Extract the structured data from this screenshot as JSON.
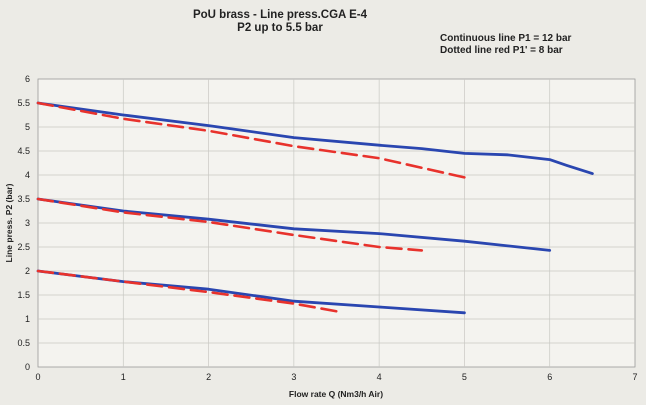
{
  "chart_data": {
    "type": "line",
    "title": "PoU brass  - Line press.CGA E-4",
    "subtitle": "P2 up to 5.5 bar",
    "annotations": [
      "Continuous line P1 = 12 bar",
      "Dotted line red  P1' = 8 bar"
    ],
    "xlabel": "Flow rate Q (Nm3/h Air)",
    "ylabel": "Line press. P2 (bar)",
    "xlim": [
      0,
      7
    ],
    "ylim": [
      0,
      6
    ],
    "x_ticks": [
      "0",
      "1",
      "2",
      "3",
      "4",
      "5",
      "6",
      "7"
    ],
    "y_ticks": [
      "0",
      "0.5",
      "1",
      "1.5",
      "2",
      "2.5",
      "3",
      "3.5",
      "4",
      "4.5",
      "5",
      "5.5",
      "6"
    ],
    "grid": true,
    "series": [
      {
        "style": "solid",
        "color": "#2a46b0",
        "points": [
          [
            0,
            5.5
          ],
          [
            1,
            5.25
          ],
          [
            2,
            5.03
          ],
          [
            3,
            4.78
          ],
          [
            4,
            4.62
          ],
          [
            4.5,
            4.55
          ],
          [
            5,
            4.45
          ],
          [
            5.5,
            4.42
          ],
          [
            6,
            4.32
          ],
          [
            6.2,
            4.2
          ],
          [
            6.5,
            4.03
          ]
        ]
      },
      {
        "style": "dashed",
        "color": "#e8322c",
        "points": [
          [
            0,
            5.5
          ],
          [
            1,
            5.17
          ],
          [
            2,
            4.92
          ],
          [
            3,
            4.6
          ],
          [
            4,
            4.35
          ],
          [
            4.5,
            4.15
          ],
          [
            5,
            3.95
          ]
        ]
      },
      {
        "style": "solid",
        "color": "#2a46b0",
        "points": [
          [
            0,
            3.5
          ],
          [
            1,
            3.25
          ],
          [
            2,
            3.08
          ],
          [
            3,
            2.88
          ],
          [
            4,
            2.78
          ],
          [
            5,
            2.62
          ],
          [
            6,
            2.43
          ]
        ]
      },
      {
        "style": "dashed",
        "color": "#e8322c",
        "points": [
          [
            0,
            3.5
          ],
          [
            1,
            3.22
          ],
          [
            2,
            3.02
          ],
          [
            3,
            2.75
          ],
          [
            4,
            2.5
          ],
          [
            4.5,
            2.43
          ]
        ]
      },
      {
        "style": "solid",
        "color": "#2a46b0",
        "points": [
          [
            0,
            2
          ],
          [
            1,
            1.78
          ],
          [
            2,
            1.62
          ],
          [
            3,
            1.37
          ],
          [
            4,
            1.25
          ],
          [
            5,
            1.13
          ]
        ]
      },
      {
        "style": "dashed",
        "color": "#e8322c",
        "points": [
          [
            0,
            2
          ],
          [
            1,
            1.78
          ],
          [
            2,
            1.56
          ],
          [
            3,
            1.32
          ],
          [
            3.5,
            1.16
          ]
        ]
      }
    ]
  }
}
